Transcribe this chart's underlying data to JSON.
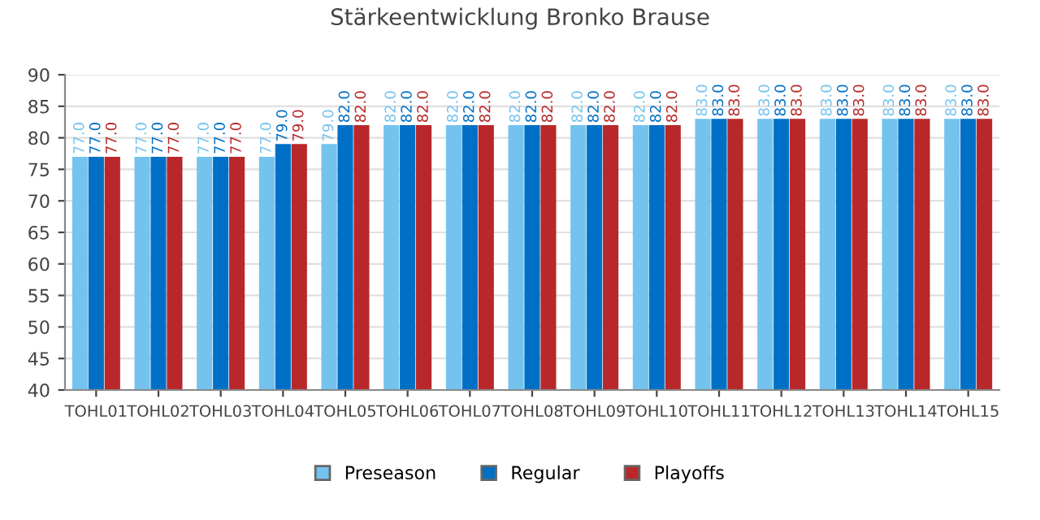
{
  "chart_data": {
    "type": "bar",
    "title": "Stärkeentwicklung Bronko Brause",
    "categories": [
      "TOHL01",
      "TOHL02",
      "TOHL03",
      "TOHL04",
      "TOHL05",
      "TOHL06",
      "TOHL07",
      "TOHL08",
      "TOHL09",
      "TOHL10",
      "TOHL11",
      "TOHL12",
      "TOHL13",
      "TOHL14",
      "TOHL15"
    ],
    "series": [
      {
        "name": "Preseason",
        "color": "#74c3ee",
        "values": [
          77,
          77,
          77,
          77,
          79,
          82,
          82,
          82,
          82,
          82,
          83,
          83,
          83,
          83,
          83
        ],
        "value_labels": [
          "77.0",
          "77.0",
          "77.0",
          "77.0",
          "79.0",
          "82.0",
          "82.0",
          "82.0",
          "82.0",
          "82.0",
          "83.0",
          "83.0",
          "83.0",
          "83.0",
          "83.0"
        ]
      },
      {
        "name": "Regular",
        "color": "#0070c6",
        "values": [
          77,
          77,
          77,
          79,
          82,
          82,
          82,
          82,
          82,
          82,
          83,
          83,
          83,
          83,
          83
        ],
        "value_labels": [
          "77.0",
          "77.0",
          "77.0",
          "79.0",
          "82.0",
          "82.0",
          "82.0",
          "82.0",
          "82.0",
          "82.0",
          "83.0",
          "83.0",
          "83.0",
          "83.0",
          "83.0"
        ]
      },
      {
        "name": "Playoffs",
        "color": "#b8282a",
        "values": [
          77,
          77,
          77,
          79,
          82,
          82,
          82,
          82,
          82,
          82,
          83,
          83,
          83,
          83,
          83
        ],
        "value_labels": [
          "77.0",
          "77.0",
          "77.0",
          "79.0",
          "82.0",
          "82.0",
          "82.0",
          "82.0",
          "82.0",
          "82.0",
          "83.0",
          "83.0",
          "83.0",
          "83.0",
          "83.0"
        ]
      }
    ],
    "ylim": [
      40,
      90
    ],
    "yticks": [
      40,
      45,
      50,
      55,
      60,
      65,
      70,
      75,
      80,
      85,
      90
    ],
    "grid": "y",
    "legend": "bottom"
  }
}
